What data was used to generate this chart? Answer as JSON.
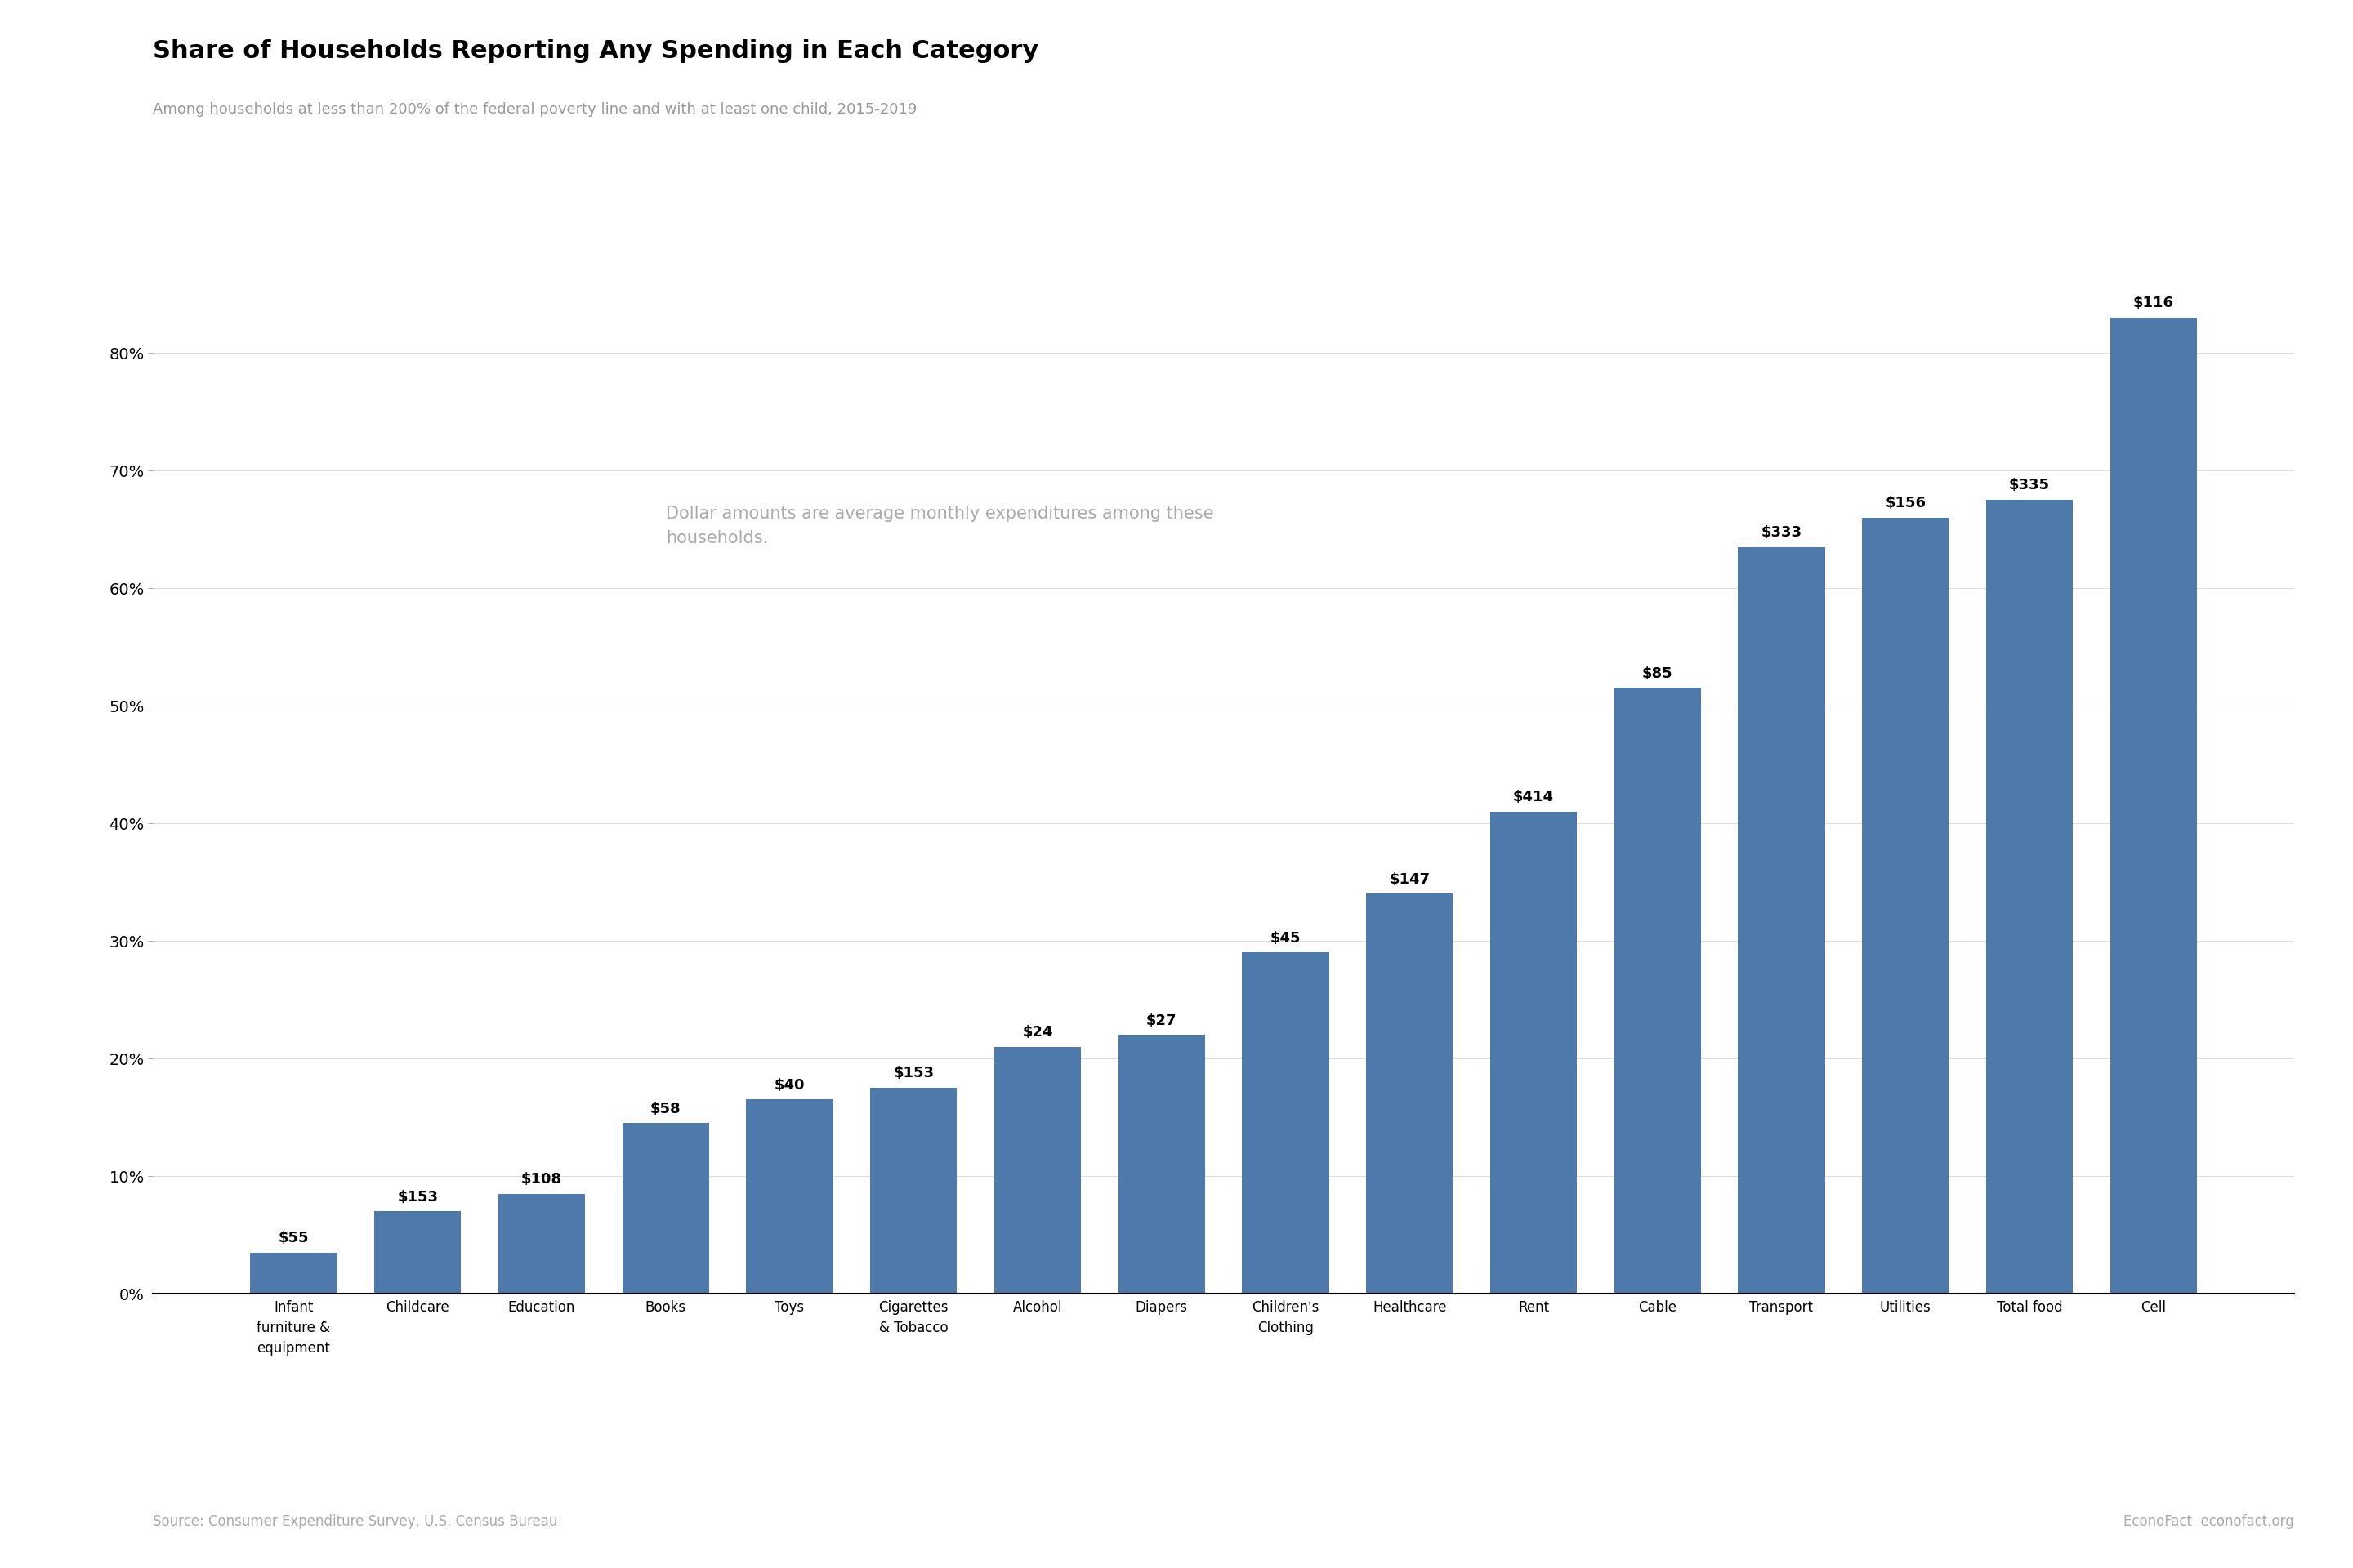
{
  "title": "Share of Households Reporting Any Spending in Each Category",
  "subtitle": "Among households at less than 200% of the federal poverty line and with at least one child, 2015-2019",
  "annotation": "Dollar amounts are average monthly expenditures among these\nhouseholds.",
  "source_left": "Source: Consumer Expenditure Survey, U.S. Census Bureau",
  "source_right": "EconoFact  econofact.org",
  "categories": [
    "Infant\nfurniture &\nequipment",
    "Childcare",
    "Education",
    "Books",
    "Toys",
    "Cigarettes\n& Tobacco",
    "Alcohol",
    "Diapers",
    "Children's\nClothing",
    "Healthcare",
    "Rent",
    "Cable",
    "Transport",
    "Utilities",
    "Total food",
    "Cell"
  ],
  "values": [
    3.5,
    7.0,
    8.5,
    14.5,
    16.5,
    17.5,
    21.0,
    22.0,
    29.0,
    34.0,
    41.0,
    51.5,
    63.5,
    66.0,
    67.5,
    83.0
  ],
  "dollar_labels": [
    "$55",
    "$153",
    "$108",
    "$58",
    "$40",
    "$153",
    "$24",
    "$27",
    "$45",
    "$147",
    "$414",
    "$85",
    "$333",
    "$156",
    "$335",
    "$116"
  ],
  "bar_color": "#4d7aab",
  "background_color": "#ffffff",
  "ylim": [
    0,
    90
  ],
  "yticks": [
    0,
    10,
    20,
    30,
    40,
    50,
    60,
    70,
    80
  ],
  "title_fontsize": 22,
  "subtitle_fontsize": 13,
  "annotation_fontsize": 15,
  "label_fontsize": 13,
  "tick_fontsize": 13,
  "source_fontsize": 12
}
